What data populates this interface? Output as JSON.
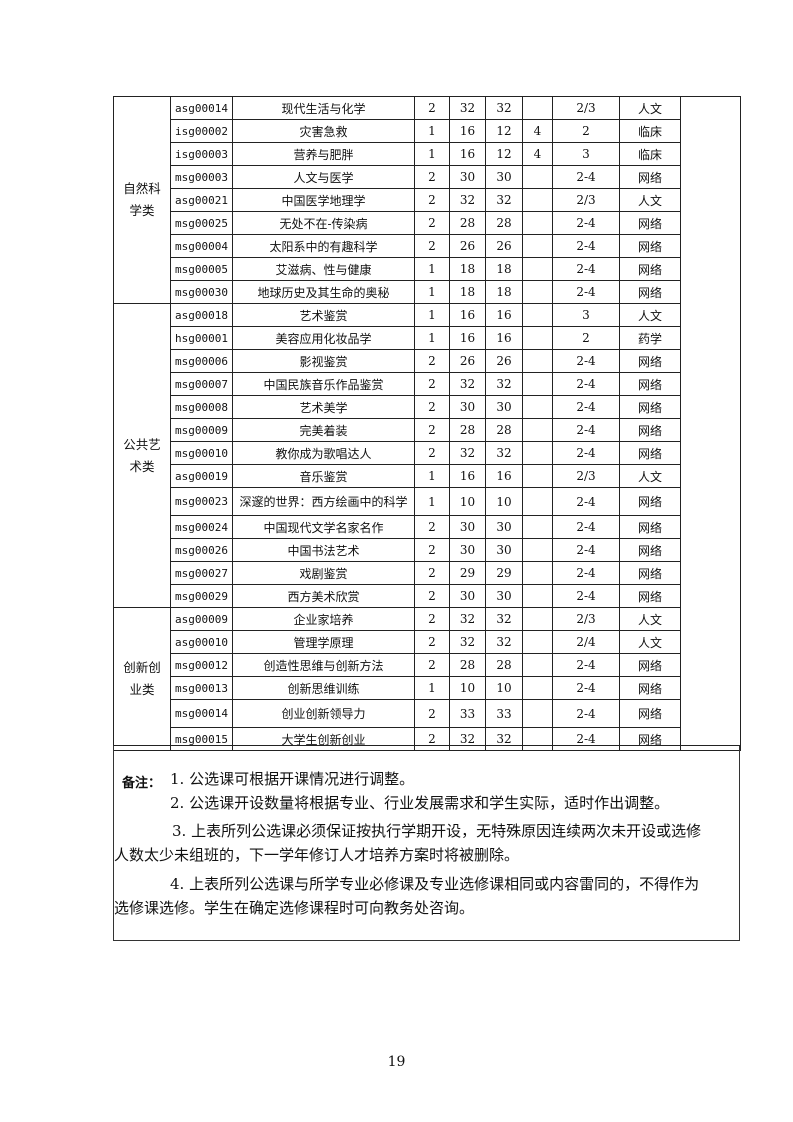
{
  "table": {
    "sections": [
      {
        "category": "自然科学类",
        "rows": [
          {
            "code": "asg00014",
            "name": "现代生活与化学",
            "credit": "2",
            "hours": "32",
            "theory": "32",
            "practice": "",
            "semester": "2/3",
            "dept": "人文"
          },
          {
            "code": "isg00002",
            "name": "灾害急救",
            "credit": "1",
            "hours": "16",
            "theory": "12",
            "practice": "4",
            "semester": "2",
            "dept": "临床"
          },
          {
            "code": "isg00003",
            "name": "营养与肥胖",
            "credit": "1",
            "hours": "16",
            "theory": "12",
            "practice": "4",
            "semester": "3",
            "dept": "临床"
          },
          {
            "code": "msg00003",
            "name": "人文与医学",
            "credit": "2",
            "hours": "30",
            "theory": "30",
            "practice": "",
            "semester": "2-4",
            "dept": "网络"
          },
          {
            "code": "asg00021",
            "name": "中国医学地理学",
            "credit": "2",
            "hours": "32",
            "theory": "32",
            "practice": "",
            "semester": "2/3",
            "dept": "人文"
          },
          {
            "code": "msg00025",
            "name": "无处不在-传染病",
            "credit": "2",
            "hours": "28",
            "theory": "28",
            "practice": "",
            "semester": "2-4",
            "dept": "网络"
          },
          {
            "code": "msg00004",
            "name": "太阳系中的有趣科学",
            "credit": "2",
            "hours": "26",
            "theory": "26",
            "practice": "",
            "semester": "2-4",
            "dept": "网络"
          },
          {
            "code": "msg00005",
            "name": "艾滋病、性与健康",
            "credit": "1",
            "hours": "18",
            "theory": "18",
            "practice": "",
            "semester": "2-4",
            "dept": "网络"
          },
          {
            "code": "msg00030",
            "name": "地球历史及其生命的奥秘",
            "credit": "1",
            "hours": "18",
            "theory": "18",
            "practice": "",
            "semester": "2-4",
            "dept": "网络"
          }
        ]
      },
      {
        "category": "公共艺术类",
        "rows": [
          {
            "code": "asg00018",
            "name": "艺术鉴赏",
            "credit": "1",
            "hours": "16",
            "theory": "16",
            "practice": "",
            "semester": "3",
            "dept": "人文"
          },
          {
            "code": "hsg00001",
            "name": "美容应用化妆品学",
            "credit": "1",
            "hours": "16",
            "theory": "16",
            "practice": "",
            "semester": "2",
            "dept": "药学"
          },
          {
            "code": "msg00006",
            "name": "影视鉴赏",
            "credit": "2",
            "hours": "26",
            "theory": "26",
            "practice": "",
            "semester": "2-4",
            "dept": "网络"
          },
          {
            "code": "msg00007",
            "name": "中国民族音乐作品鉴赏",
            "credit": "2",
            "hours": "32",
            "theory": "32",
            "practice": "",
            "semester": "2-4",
            "dept": "网络"
          },
          {
            "code": "msg00008",
            "name": "艺术美学",
            "credit": "2",
            "hours": "30",
            "theory": "30",
            "practice": "",
            "semester": "2-4",
            "dept": "网络"
          },
          {
            "code": "msg00009",
            "name": "完美着装",
            "credit": "2",
            "hours": "28",
            "theory": "28",
            "practice": "",
            "semester": "2-4",
            "dept": "网络"
          },
          {
            "code": "msg00010",
            "name": "教你成为歌唱达人",
            "credit": "2",
            "hours": "32",
            "theory": "32",
            "practice": "",
            "semester": "2-4",
            "dept": "网络"
          },
          {
            "code": "asg00019",
            "name": "音乐鉴赏",
            "credit": "1",
            "hours": "16",
            "theory": "16",
            "practice": "",
            "semester": "2/3",
            "dept": "人文"
          },
          {
            "code": "msg00023",
            "name": "深邃的世界：西方绘画中的科学",
            "credit": "1",
            "hours": "10",
            "theory": "10",
            "practice": "",
            "semester": "2-4",
            "dept": "网络",
            "tall": true
          },
          {
            "code": "msg00024",
            "name": "中国现代文学名家名作",
            "credit": "2",
            "hours": "30",
            "theory": "30",
            "practice": "",
            "semester": "2-4",
            "dept": "网络"
          },
          {
            "code": "msg00026",
            "name": "中国书法艺术",
            "credit": "2",
            "hours": "30",
            "theory": "30",
            "practice": "",
            "semester": "2-4",
            "dept": "网络"
          },
          {
            "code": "msg00027",
            "name": "戏剧鉴赏",
            "credit": "2",
            "hours": "29",
            "theory": "29",
            "practice": "",
            "semester": "2-4",
            "dept": "网络"
          },
          {
            "code": "msg00029",
            "name": "西方美术欣赏",
            "credit": "2",
            "hours": "30",
            "theory": "30",
            "practice": "",
            "semester": "2-4",
            "dept": "网络"
          }
        ]
      },
      {
        "category": "创新创业类",
        "rows": [
          {
            "code": "asg00009",
            "name": "企业家培养",
            "credit": "2",
            "hours": "32",
            "theory": "32",
            "practice": "",
            "semester": "2/3",
            "dept": "人文"
          },
          {
            "code": "asg00010",
            "name": "管理学原理",
            "credit": "2",
            "hours": "32",
            "theory": "32",
            "practice": "",
            "semester": "2/4",
            "dept": "人文"
          },
          {
            "code": "msg00012",
            "name": "创造性思维与创新方法",
            "credit": "2",
            "hours": "28",
            "theory": "28",
            "practice": "",
            "semester": "2-4",
            "dept": "网络"
          },
          {
            "code": "msg00013",
            "name": "创新思维训练",
            "credit": "1",
            "hours": "10",
            "theory": "10",
            "practice": "",
            "semester": "2-4",
            "dept": "网络"
          },
          {
            "code": "msg00014",
            "name": "创业创新领导力",
            "credit": "2",
            "hours": "33",
            "theory": "33",
            "practice": "",
            "semester": "2-4",
            "dept": "网络",
            "tall": true
          },
          {
            "code": "msg00015",
            "name": "大学生创新创业",
            "credit": "2",
            "hours": "32",
            "theory": "32",
            "practice": "",
            "semester": "2-4",
            "dept": "网络"
          }
        ]
      }
    ]
  },
  "notes": {
    "label": "备注：",
    "lines": [
      "1. 公选课可根据开课情况进行调整。",
      "2. 公选课开设数量将根据专业、行业发展需求和学生实际，适时作出调整。",
      "3. 上表所列公选课必须保证按执行学期开设，无特殊原因连续两次未开设或选修",
      "人数太少未组班的，下一学年修订人才培养方案时将被删除。",
      "4. 上表所列公选课与所学专业必修课及专业选修课相同或内容雷同的，不得作为",
      "选修课选修。学生在确定选修课程时可向教务处咨询。"
    ]
  },
  "page_number": "19"
}
